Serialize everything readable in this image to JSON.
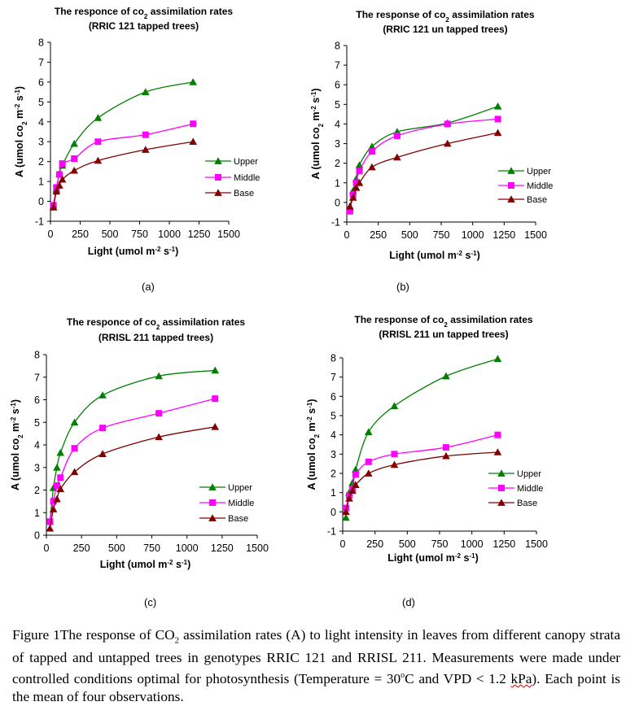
{
  "figure": {
    "panel_labels": [
      "(a)",
      "(b)",
      "(c)",
      "(d)"
    ],
    "caption": {
      "prefix": "Figure 1The response of CO",
      "sub": "2",
      "middle": " assimilation rates (A) to light intensity in leaves from different canopy strata of tapped and untapped trees in genotypes RRIC 121 and RRISL 211. Measurements were made under controlled conditions optimal for photosynthesis (Temperature = 30",
      "degree": "o",
      "after_degree": "C and VPD < 1.2 ",
      "squiggle_word": "kPa",
      "suffix": "). Each point is the mean of four observations."
    }
  },
  "colors": {
    "Upper": "#008000",
    "Middle": "#ff00ff",
    "Base": "#800000"
  },
  "chart_data": [
    {
      "type": "line",
      "panel": "(a)",
      "title_line1_pre": "The responce of co",
      "title_line1_sub": "2",
      "title_line1_post": " assimilation rates",
      "title_line2": "(RRIC 121 tapped trees)",
      "xlabel": "Light (umol m-2 s-1)",
      "ylabel": "A (umol co2 m-2 s-1)",
      "xlim": [
        0,
        1500
      ],
      "ylim": [
        -1,
        8
      ],
      "xticks": [
        0,
        250,
        500,
        750,
        1000,
        1250,
        1500
      ],
      "yticks": [
        -1,
        0,
        1,
        2,
        3,
        4,
        5,
        6,
        7,
        8
      ],
      "grid": false,
      "legend_position": "right",
      "x": [
        25,
        50,
        75,
        100,
        200,
        400,
        800,
        1200
      ],
      "series": [
        {
          "name": "Upper",
          "marker": "triangle",
          "values": [
            -0.2,
            0.6,
            1.4,
            1.8,
            2.9,
            4.2,
            5.5,
            6.0
          ]
        },
        {
          "name": "Middle",
          "marker": "square",
          "values": [
            -0.2,
            0.7,
            1.35,
            1.9,
            2.15,
            3.0,
            3.35,
            3.9
          ]
        },
        {
          "name": "Base",
          "marker": "triangle",
          "values": [
            -0.3,
            0.5,
            0.8,
            1.1,
            1.55,
            2.05,
            2.6,
            3.0
          ]
        }
      ]
    },
    {
      "type": "line",
      "panel": "(b)",
      "title_line1_pre": "The response of co",
      "title_line1_sub": "2",
      "title_line1_post": " assimilation rates",
      "title_line2": "(RRIC 121 un tapped trees)",
      "xlabel": "Light (umol m-2 s-1)",
      "ylabel": "A (umol co2 m-2 s-1)",
      "xlim": [
        0,
        1500
      ],
      "ylim": [
        -1,
        8
      ],
      "xticks": [
        0,
        250,
        500,
        750,
        1000,
        1250,
        1500
      ],
      "yticks": [
        -1,
        0,
        1,
        2,
        3,
        4,
        5,
        6,
        7,
        8
      ],
      "grid": false,
      "legend_position": "right",
      "x": [
        25,
        50,
        75,
        100,
        200,
        400,
        800,
        1200
      ],
      "series": [
        {
          "name": "Upper",
          "marker": "triangle",
          "values": [
            -0.3,
            0.6,
            1.2,
            1.9,
            2.85,
            3.6,
            4.05,
            4.9
          ]
        },
        {
          "name": "Middle",
          "marker": "square",
          "values": [
            -0.45,
            0.4,
            1.0,
            1.6,
            2.6,
            3.4,
            4.0,
            4.25
          ]
        },
        {
          "name": "Base",
          "marker": "triangle",
          "values": [
            -0.2,
            0.25,
            0.75,
            1.0,
            1.8,
            2.3,
            3.0,
            3.55
          ]
        }
      ]
    },
    {
      "type": "line",
      "panel": "(c)",
      "title_line1_pre": "The responce of co",
      "title_line1_sub": "2",
      "title_line1_post": " assimilation rates",
      "title_line2": "(RRISL 211 tapped trees)",
      "xlabel": "Light (umol m-2 s-1)",
      "ylabel": "A (umol co2 m-2 s-1)",
      "xlim": [
        0,
        1500
      ],
      "ylim": [
        0,
        8
      ],
      "xticks": [
        0,
        250,
        500,
        750,
        1000,
        1250,
        1500
      ],
      "yticks": [
        0,
        1,
        2,
        3,
        4,
        5,
        6,
        7,
        8
      ],
      "grid": false,
      "legend_position": "right",
      "x": [
        25,
        50,
        75,
        100,
        200,
        400,
        800,
        1200
      ],
      "series": [
        {
          "name": "Upper",
          "marker": "triangle",
          "values": [
            0.6,
            2.1,
            3.0,
            3.65,
            5.0,
            6.2,
            7.05,
            7.3
          ]
        },
        {
          "name": "Middle",
          "marker": "square",
          "values": [
            0.6,
            1.5,
            2.2,
            2.55,
            3.85,
            4.75,
            5.4,
            6.05
          ]
        },
        {
          "name": "Base",
          "marker": "triangle",
          "values": [
            0.3,
            1.15,
            1.6,
            2.05,
            2.8,
            3.6,
            4.35,
            4.8
          ]
        }
      ]
    },
    {
      "type": "line",
      "panel": "(d)",
      "title_line1_pre": "The response of co",
      "title_line1_sub": "2",
      "title_line1_post": " assimilation rates",
      "title_line2": "(RRISL 211 un tapped trees)",
      "xlabel": "Light (umol m-2 s-1)",
      "ylabel": "A (umol co2 m-2 s-1)",
      "xlim": [
        0,
        1500
      ],
      "ylim": [
        -1,
        8
      ],
      "xticks": [
        0,
        250,
        500,
        750,
        1000,
        1250,
        1500
      ],
      "yticks": [
        -1,
        0,
        1,
        2,
        3,
        4,
        5,
        6,
        7,
        8
      ],
      "grid": false,
      "legend_position": "right",
      "x": [
        25,
        50,
        75,
        100,
        200,
        400,
        800,
        1200
      ],
      "series": [
        {
          "name": "Upper",
          "marker": "triangle",
          "values": [
            -0.3,
            1.0,
            1.5,
            2.2,
            4.15,
            5.5,
            7.05,
            7.95
          ]
        },
        {
          "name": "Middle",
          "marker": "square",
          "values": [
            0.2,
            0.85,
            1.2,
            1.95,
            2.6,
            3.0,
            3.35,
            4.0
          ]
        },
        {
          "name": "Base",
          "marker": "triangle",
          "values": [
            0.0,
            0.7,
            1.1,
            1.4,
            2.0,
            2.45,
            2.9,
            3.1
          ]
        }
      ]
    }
  ]
}
